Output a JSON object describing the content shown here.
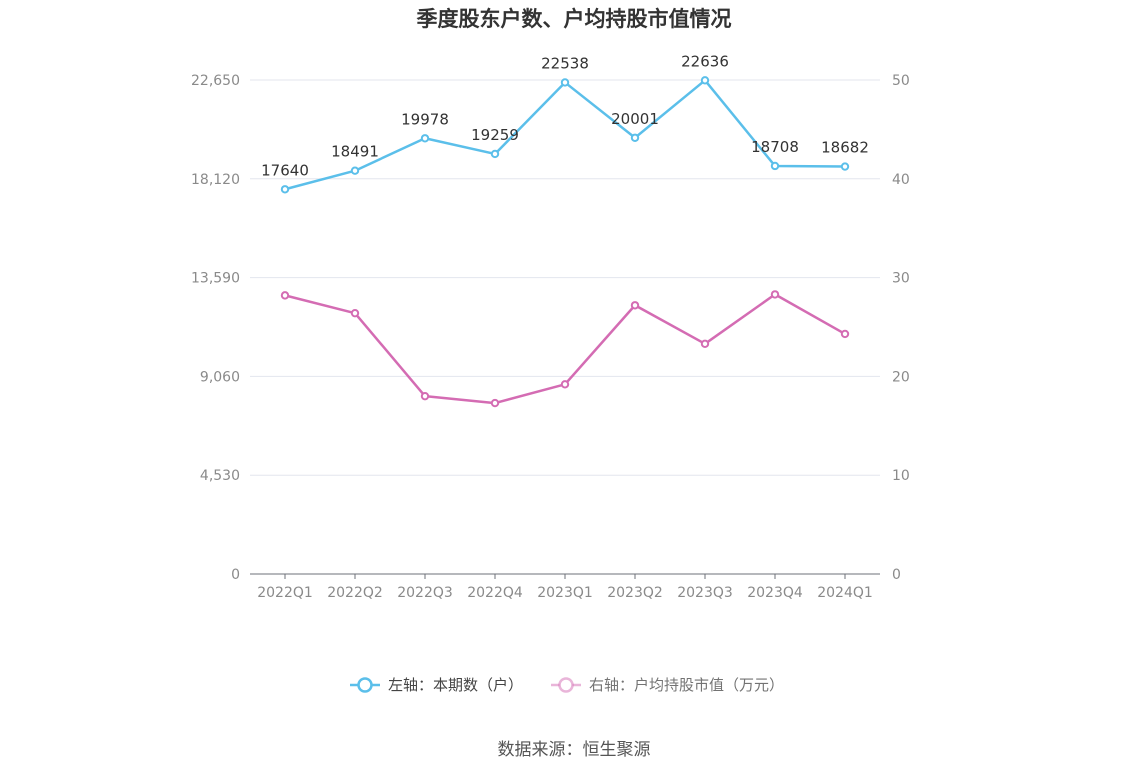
{
  "chart_data": {
    "type": "line",
    "title": "季度股东户数、户均持股市值情况",
    "categories": [
      "2022Q1",
      "2022Q2",
      "2022Q3",
      "2022Q4",
      "2023Q1",
      "2023Q2",
      "2023Q3",
      "2023Q4",
      "2024Q1"
    ],
    "left_axis": {
      "ticks": [
        "0",
        "4,530",
        "9,060",
        "13,590",
        "18,120",
        "22,650"
      ],
      "ylim": [
        0,
        22650
      ]
    },
    "right_axis": {
      "ticks": [
        "0",
        "10",
        "20",
        "30",
        "40",
        "50"
      ],
      "ylim": [
        0,
        50
      ]
    },
    "series": [
      {
        "name": "左轴：本期数（户）",
        "axis": "left",
        "color": "#5bbfea",
        "values": [
          17640,
          18491,
          19978,
          19259,
          22538,
          20001,
          22636,
          18708,
          18682
        ],
        "labels": [
          "17640",
          "18491",
          "19978",
          "19259",
          "22538",
          "20001",
          "22636",
          "18708",
          "18682"
        ]
      },
      {
        "name": "右轴：户均持股市值（万元）",
        "axis": "right",
        "color": "#d46cb3",
        "values": [
          28.2,
          26.4,
          18.0,
          17.3,
          19.2,
          27.2,
          23.3,
          28.3,
          24.3
        ]
      }
    ],
    "grid": true,
    "legend_position": "bottom"
  },
  "source_text": "数据来源：恒生聚源"
}
